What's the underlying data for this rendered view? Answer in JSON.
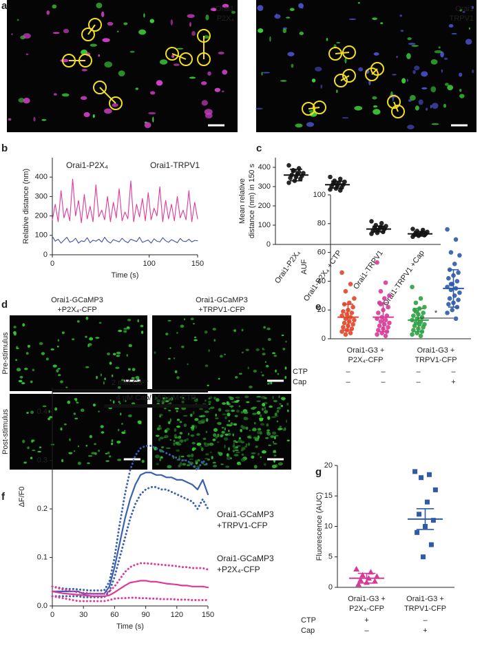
{
  "images": {
    "a": {
      "panel": "a",
      "left": [
        "Orai1",
        "P2X₄"
      ],
      "right": [
        "Orai1",
        "TRPV1"
      ]
    },
    "d": {
      "panel": "d",
      "columns": [
        [
          "Orai1-GCaMP3",
          "+P2X₄-CFP"
        ],
        [
          "Orai1-GCaMP3",
          "+TRPV1-CFP"
        ]
      ],
      "rows": [
        "Pre-stimulus",
        "Post-stimulus"
      ]
    }
  },
  "chart_data": [
    {
      "panel": "b",
      "type": "line",
      "xlabel": "Time (s)",
      "ylabel": "Relative distance (nm)",
      "x": [
        0,
        3,
        6,
        9,
        12,
        15,
        18,
        21,
        24,
        27,
        30,
        33,
        36,
        39,
        42,
        45,
        48,
        51,
        54,
        57,
        60,
        63,
        66,
        69,
        72,
        75,
        78,
        81,
        84,
        87,
        90,
        93,
        96,
        99,
        102,
        105,
        108,
        111,
        114,
        117,
        120,
        123,
        126,
        129,
        132,
        135,
        138,
        141,
        144,
        147,
        150
      ],
      "xlim": [
        0,
        150
      ],
      "xticks": [
        0,
        100,
        150
      ],
      "ylim": [
        0,
        500
      ],
      "yticks": [
        0,
        100,
        200,
        300,
        400
      ],
      "series": [
        {
          "name": "Orai1-P2X₄",
          "color": "#e0379a",
          "values": [
            180,
            260,
            170,
            330,
            190,
            240,
            175,
            390,
            200,
            280,
            165,
            310,
            185,
            250,
            170,
            360,
            195,
            230,
            180,
            300,
            170,
            270,
            190,
            340,
            175,
            220,
            185,
            380,
            170,
            260,
            195,
            290,
            175,
            320,
            180,
            240,
            200,
            350,
            170,
            280,
            185,
            260,
            175,
            300,
            190,
            230,
            180,
            330,
            170,
            270,
            185
          ]
        },
        {
          "name": "Orai1-TRPV1",
          "color": "#3b55a6",
          "values": [
            95,
            70,
            80,
            60,
            75,
            90,
            65,
            70,
            85,
            60,
            72,
            68,
            88,
            62,
            75,
            70,
            80,
            65,
            90,
            70,
            60,
            78,
            72,
            66,
            85,
            70,
            62,
            80,
            74,
            68,
            90,
            64,
            70,
            76,
            60,
            82,
            70,
            66,
            88,
            72,
            64,
            78,
            70,
            62,
            84,
            70,
            68,
            80,
            66,
            74,
            72
          ]
        }
      ]
    },
    {
      "panel": "c",
      "type": "strip",
      "ylabel": [
        "Mean relative",
        "distance (nm) in 150 s"
      ],
      "ylim": [
        0,
        450
      ],
      "yticks": [
        0,
        100,
        200,
        300,
        400
      ],
      "groups": [
        {
          "name": "Orai1-P2X₄",
          "color": "#111111",
          "values": [
            410,
            395,
            380,
            370,
            365,
            360,
            355,
            350,
            345,
            340,
            330,
            320,
            375,
            385
          ],
          "mean": 360,
          "sd": 30
        },
        {
          "name": "Orai1-P2X₄ +CTP",
          "color": "#111111",
          "values": [
            350,
            340,
            330,
            325,
            320,
            315,
            310,
            305,
            300,
            295,
            290,
            285,
            280,
            318
          ],
          "mean": 310,
          "sd": 18
        },
        {
          "name": "Orai1-TRPV1",
          "color": "#111111",
          "values": [
            120,
            110,
            100,
            95,
            90,
            85,
            80,
            75,
            70,
            65,
            60,
            55,
            88,
            78
          ],
          "mean": 80,
          "sd": 15
        },
        {
          "name": "Orai1-TRPV1 +Cap",
          "color": "#111111",
          "values": [
            80,
            75,
            70,
            65,
            60,
            58,
            55,
            52,
            50,
            48,
            45,
            40,
            62,
            56
          ],
          "mean": 55,
          "sd": 12
        }
      ]
    },
    {
      "panel": "e",
      "type": "strip",
      "ylabel": [
        "AUF"
      ],
      "ylim": [
        0,
        100
      ],
      "yticks": [
        0,
        20,
        40,
        60,
        80,
        100
      ],
      "groups": [
        {
          "color": "#e0452a",
          "values": [
            46,
            38,
            33,
            28,
            25,
            24,
            22,
            20,
            19,
            18,
            17,
            16,
            15,
            14,
            13,
            12,
            11,
            10,
            9,
            8,
            7,
            6,
            5,
            4,
            3
          ],
          "mean": 15,
          "sd": 9
        },
        {
          "color": "#d63a96",
          "values": [
            53,
            39,
            33,
            30,
            28,
            25,
            22,
            20,
            18,
            16,
            15,
            14,
            13,
            12,
            11,
            10,
            9,
            8,
            7,
            6,
            5,
            4,
            3,
            2,
            24
          ],
          "mean": 15,
          "sd": 10
        },
        {
          "color": "#2ea043",
          "values": [
            36,
            28,
            25,
            22,
            21,
            20,
            18,
            17,
            16,
            15,
            14,
            13,
            12,
            11,
            10,
            10,
            9,
            8,
            7,
            6,
            5,
            4,
            3,
            2,
            19
          ],
          "mean": 13,
          "sd": 8
        },
        {
          "color": "#2e5aa8",
          "values": [
            76,
            69,
            60,
            58,
            52,
            48,
            46,
            44,
            42,
            40,
            38,
            36,
            35,
            34,
            32,
            30,
            28,
            27,
            25,
            24,
            22,
            20,
            18,
            14,
            38
          ],
          "mean": 35,
          "sd": 13
        }
      ],
      "group_labels": [
        {
          "text": [
            "Orai1-G3 +",
            "P2X₄-CFP"
          ],
          "span": [
            0,
            1
          ]
        },
        {
          "text": [
            "Orai1-G3 +",
            "TRPV1-CFP"
          ],
          "span": [
            2,
            3
          ]
        }
      ],
      "conditions": [
        {
          "name": "CTP",
          "marks": [
            "–",
            "–",
            "–",
            "–"
          ]
        },
        {
          "name": "Cap",
          "marks": [
            "–",
            "–",
            "–",
            "+"
          ]
        }
      ],
      "significance": [
        {
          "text": "*",
          "between": [
            2,
            3
          ]
        }
      ]
    },
    {
      "panel": "f",
      "type": "line",
      "xlabel": "Time (s)",
      "ylabel": "ΔF/F0",
      "x": [
        0,
        5,
        10,
        15,
        20,
        25,
        30,
        35,
        40,
        45,
        50,
        55,
        60,
        65,
        70,
        75,
        80,
        85,
        90,
        95,
        100,
        105,
        110,
        115,
        120,
        125,
        130,
        135,
        140,
        145,
        150
      ],
      "xlim": [
        0,
        150
      ],
      "xticks": [
        0,
        30,
        60,
        90,
        120,
        150
      ],
      "ylim": [
        0,
        0.45
      ],
      "yticks": [
        {
          "value": 0,
          "label": "0.0"
        },
        0.1,
        0.2,
        0.3,
        0.4
      ],
      "bars": [
        {
          "text": "2 mM Ca²⁺",
          "x": [
            0,
            150
          ]
        },
        {
          "text": "4 μM Cap/ 150 μM CTP",
          "x": [
            50,
            150
          ]
        }
      ],
      "series": [
        {
          "name": [
            "Orai1-GCaMP3",
            "+TRPV1-CFP"
          ],
          "color": "#3b5fb0",
          "style": "solid",
          "values": [
            0.03,
            0.03,
            0.03,
            0.03,
            0.03,
            0.03,
            0.025,
            0.025,
            0.025,
            0.025,
            0.025,
            0.04,
            0.08,
            0.13,
            0.18,
            0.22,
            0.25,
            0.27,
            0.275,
            0.275,
            0.27,
            0.27,
            0.265,
            0.265,
            0.26,
            0.26,
            0.255,
            0.25,
            0.24,
            0.26,
            0.23
          ]
        },
        {
          "color": "#3b5fb0",
          "style": "dotted",
          "values": [
            0.04,
            0.038,
            0.036,
            0.035,
            0.035,
            0.034,
            0.033,
            0.032,
            0.032,
            0.032,
            0.032,
            0.05,
            0.1,
            0.17,
            0.23,
            0.28,
            0.31,
            0.325,
            0.33,
            0.33,
            0.325,
            0.32,
            0.315,
            0.31,
            0.305,
            0.3,
            0.3,
            0.29,
            0.28,
            0.3,
            0.29
          ]
        },
        {
          "color": "#3b5fb0",
          "style": "dotted",
          "values": [
            0.02,
            0.02,
            0.02,
            0.02,
            0.02,
            0.02,
            0.018,
            0.018,
            0.018,
            0.018,
            0.018,
            0.03,
            0.06,
            0.1,
            0.14,
            0.18,
            0.21,
            0.23,
            0.24,
            0.245,
            0.245,
            0.24,
            0.24,
            0.235,
            0.23,
            0.225,
            0.22,
            0.215,
            0.2,
            0.22,
            0.2
          ]
        },
        {
          "name": [
            "Orai1-GCaMP3",
            "+P2X₄-CFP"
          ],
          "color": "#e0379a",
          "style": "solid",
          "values": [
            0.03,
            0.028,
            0.026,
            0.025,
            0.024,
            0.023,
            0.022,
            0.021,
            0.02,
            0.02,
            0.02,
            0.022,
            0.028,
            0.035,
            0.042,
            0.048,
            0.05,
            0.052,
            0.052,
            0.05,
            0.05,
            0.048,
            0.046,
            0.045,
            0.044,
            0.042,
            0.042,
            0.04,
            0.04,
            0.04,
            0.038
          ]
        },
        {
          "color": "#e0379a",
          "style": "dotted",
          "values": [
            0.04,
            0.037,
            0.034,
            0.032,
            0.03,
            0.028,
            0.027,
            0.026,
            0.025,
            0.025,
            0.025,
            0.03,
            0.04,
            0.055,
            0.07,
            0.08,
            0.085,
            0.088,
            0.088,
            0.087,
            0.086,
            0.085,
            0.084,
            0.083,
            0.082,
            0.08,
            0.08,
            0.078,
            0.078,
            0.078,
            0.075
          ]
        },
        {
          "color": "#e0379a",
          "style": "dotted",
          "values": [
            0.02,
            0.018,
            0.016,
            0.014,
            0.012,
            0.01,
            0.01,
            0.01,
            0.01,
            0.01,
            0.01,
            0.012,
            0.015,
            0.016,
            0.016,
            0.017,
            0.017,
            0.016,
            0.016,
            0.015,
            0.015,
            0.014,
            0.014,
            0.014,
            0.013,
            0.013,
            0.013,
            0.012,
            0.012,
            0.012,
            0.012
          ]
        }
      ]
    },
    {
      "panel": "g",
      "type": "strip",
      "ylabel": [
        "Fluorescence (AUC)"
      ],
      "ylim": [
        0,
        20
      ],
      "yticks": [
        0,
        5,
        10,
        15,
        20
      ],
      "groups": [
        {
          "color": "#d63a96",
          "marker": "triangle",
          "values": [
            3,
            2.5,
            2,
            1.8,
            1.5,
            1.2,
            1,
            0.8,
            0.5
          ],
          "mean": 1.5,
          "sd": 0.8
        },
        {
          "color": "#2e5aa8",
          "marker": "square",
          "values": [
            19,
            18.5,
            18,
            16,
            14,
            12,
            11,
            10,
            9,
            7,
            5
          ],
          "mean": 11.2,
          "sd": 1.7
        }
      ],
      "group_labels": [
        {
          "text": [
            "Orai1-G3 +",
            "P2X₄-CFP"
          ],
          "span": [
            0,
            0
          ]
        },
        {
          "text": [
            "Orai1-G3 +",
            "TRPV1-CFP"
          ],
          "span": [
            1,
            1
          ]
        }
      ],
      "conditions": [
        {
          "name": "CTP",
          "marks": [
            "+",
            "–"
          ]
        },
        {
          "name": "Cap",
          "marks": [
            "–",
            "+"
          ]
        }
      ]
    }
  ]
}
